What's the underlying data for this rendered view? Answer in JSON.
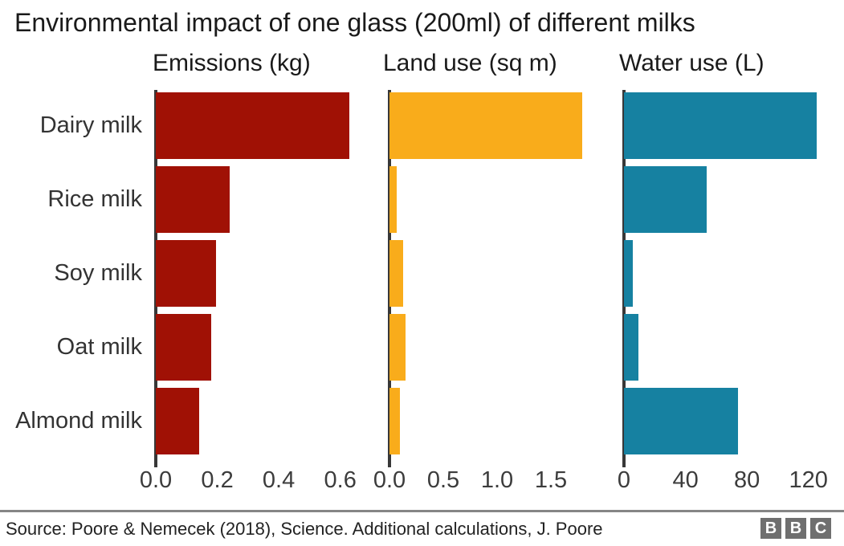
{
  "title": "Environmental impact of one glass (200ml) of different milks",
  "chart_data": {
    "type": "bar",
    "orientation": "horizontal",
    "grid": false,
    "legend": false,
    "categories": [
      "Dairy milk",
      "Rice milk",
      "Soy milk",
      "Oat milk",
      "Almond milk"
    ],
    "panels": [
      {
        "title": "Emissions (kg)",
        "color": "#a01105",
        "values": [
          0.63,
          0.24,
          0.195,
          0.18,
          0.14
        ],
        "ticks": [
          0.0,
          0.2,
          0.4,
          0.6
        ],
        "tick_labels": [
          "0.0",
          "0.2",
          "0.4",
          "0.6"
        ],
        "xlim": [
          0,
          0.7
        ]
      },
      {
        "title": "Land use (sq m)",
        "color": "#f9ac1b",
        "values": [
          1.79,
          0.07,
          0.13,
          0.15,
          0.1
        ],
        "ticks": [
          0.0,
          0.5,
          1.0,
          1.5
        ],
        "tick_labels": [
          "0.0",
          "0.5",
          "1.0",
          "1.5"
        ],
        "xlim": [
          0,
          2.0
        ]
      },
      {
        "title": "Water use (L)",
        "color": "#1681a1",
        "values": [
          125.6,
          54,
          5.6,
          9.6,
          74.3
        ],
        "ticks": [
          0,
          40,
          80,
          120
        ],
        "tick_labels": [
          "0",
          "40",
          "80",
          "120"
        ],
        "xlim": [
          0,
          140
        ]
      }
    ]
  },
  "footer": {
    "source": "Source: Poore & Nemecek (2018), Science. Additional calculations, J. Poore",
    "logo_letters": [
      "B",
      "B",
      "C"
    ]
  },
  "colors": {
    "emissions_bar": "#a01105",
    "land_bar": "#f9ac1b",
    "water_bar": "#1681a1",
    "axis_line": "#383838",
    "title_text": "#1a1a1a",
    "label_text": "#333333",
    "tick_text": "#3c3c3c",
    "divider": "#868686",
    "logo_bg": "#6f6f6f"
  }
}
